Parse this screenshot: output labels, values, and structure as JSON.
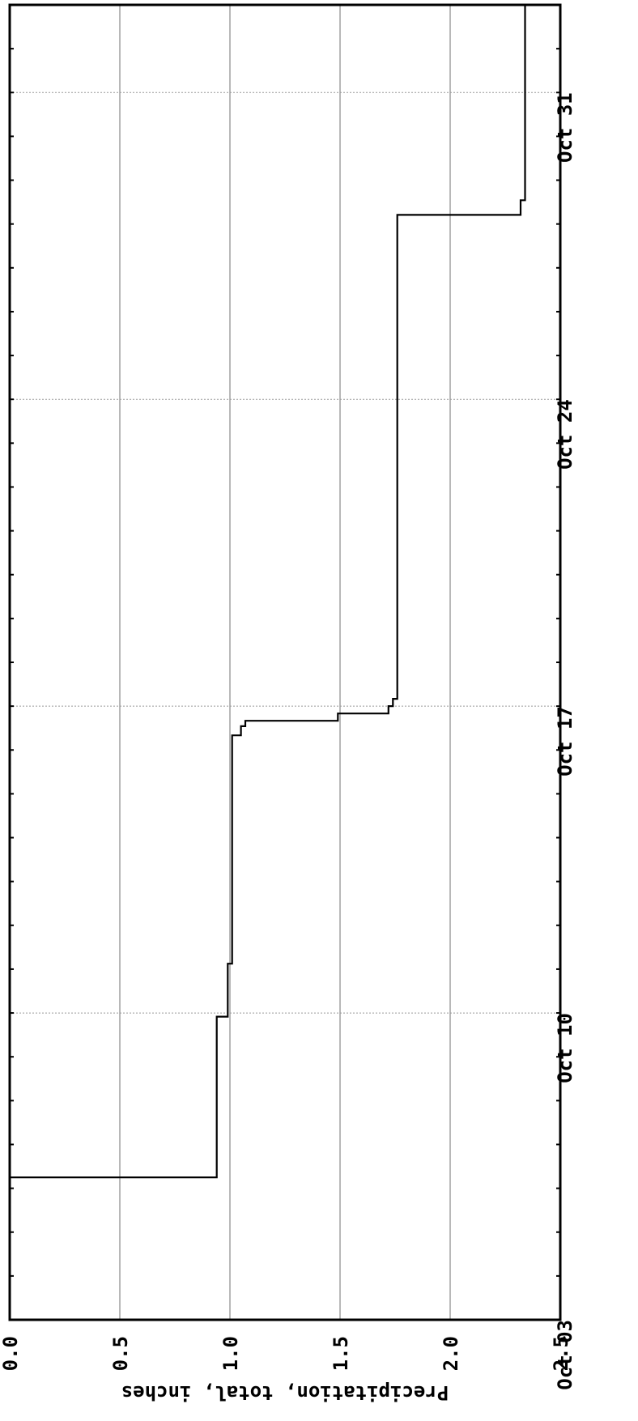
{
  "chart_data": {
    "type": "line",
    "title": "",
    "ylabel": "Precipitation, total, inches",
    "xlabel": "",
    "orientation": "rotated 90 degrees clockwise",
    "x_axis": {
      "range": [
        "Oct 03",
        "Nov 02"
      ],
      "ticks": [
        {
          "date": "Oct 03",
          "label": "Oct 03"
        },
        {
          "date": "Oct 10",
          "label": "Oct 10"
        },
        {
          "date": "Oct 17",
          "label": "Oct 17"
        },
        {
          "date": "Oct 24",
          "label": "Oct 24"
        },
        {
          "date": "Oct 31",
          "label": "Oct 31"
        }
      ]
    },
    "y_axis": {
      "range": [
        0,
        2.5
      ],
      "ticks": [
        {
          "value": 0.0,
          "label": "0.0"
        },
        {
          "value": 0.5,
          "label": "0.5"
        },
        {
          "value": 1.0,
          "label": "1.0"
        },
        {
          "value": 1.5,
          "label": "1.5"
        },
        {
          "value": 2.0,
          "label": "2.0"
        },
        {
          "value": 2.5,
          "label": "2.5"
        }
      ]
    },
    "grid": true,
    "line_style": "step",
    "series": [
      {
        "color": "#000000",
        "points": [
          {
            "x": "Oct 03 00:00",
            "y": 0.0
          },
          {
            "x": "Oct 06 06:00",
            "y": 0.0
          },
          {
            "x": "Oct 06 06:00",
            "y": 0.94
          },
          {
            "x": "Oct 09 22:00",
            "y": 0.94
          },
          {
            "x": "Oct 09 22:00",
            "y": 0.99
          },
          {
            "x": "Oct 11 03:00",
            "y": 0.99
          },
          {
            "x": "Oct 11 03:00",
            "y": 1.01
          },
          {
            "x": "Oct 16 08:00",
            "y": 1.01
          },
          {
            "x": "Oct 16 08:00",
            "y": 1.05
          },
          {
            "x": "Oct 16 13:00",
            "y": 1.05
          },
          {
            "x": "Oct 16 13:00",
            "y": 1.07
          },
          {
            "x": "Oct 16 16:00",
            "y": 1.07
          },
          {
            "x": "Oct 16 16:00",
            "y": 1.49
          },
          {
            "x": "Oct 16 20:00",
            "y": 1.49
          },
          {
            "x": "Oct 16 20:00",
            "y": 1.72
          },
          {
            "x": "Oct 17 00:00",
            "y": 1.72
          },
          {
            "x": "Oct 17 00:00",
            "y": 1.74
          },
          {
            "x": "Oct 17 04:00",
            "y": 1.74
          },
          {
            "x": "Oct 17 04:00",
            "y": 1.76
          },
          {
            "x": "Oct 28 05:00",
            "y": 1.76
          },
          {
            "x": "Oct 28 05:00",
            "y": 2.32
          },
          {
            "x": "Oct 28 13:00",
            "y": 2.32
          },
          {
            "x": "Oct 28 13:00",
            "y": 2.34
          },
          {
            "x": "Nov 02 00:00",
            "y": 2.34
          }
        ]
      }
    ],
    "colors": {
      "line": "#000000",
      "frame": "#000000",
      "grid": "#999999",
      "background": "#ffffff"
    }
  }
}
